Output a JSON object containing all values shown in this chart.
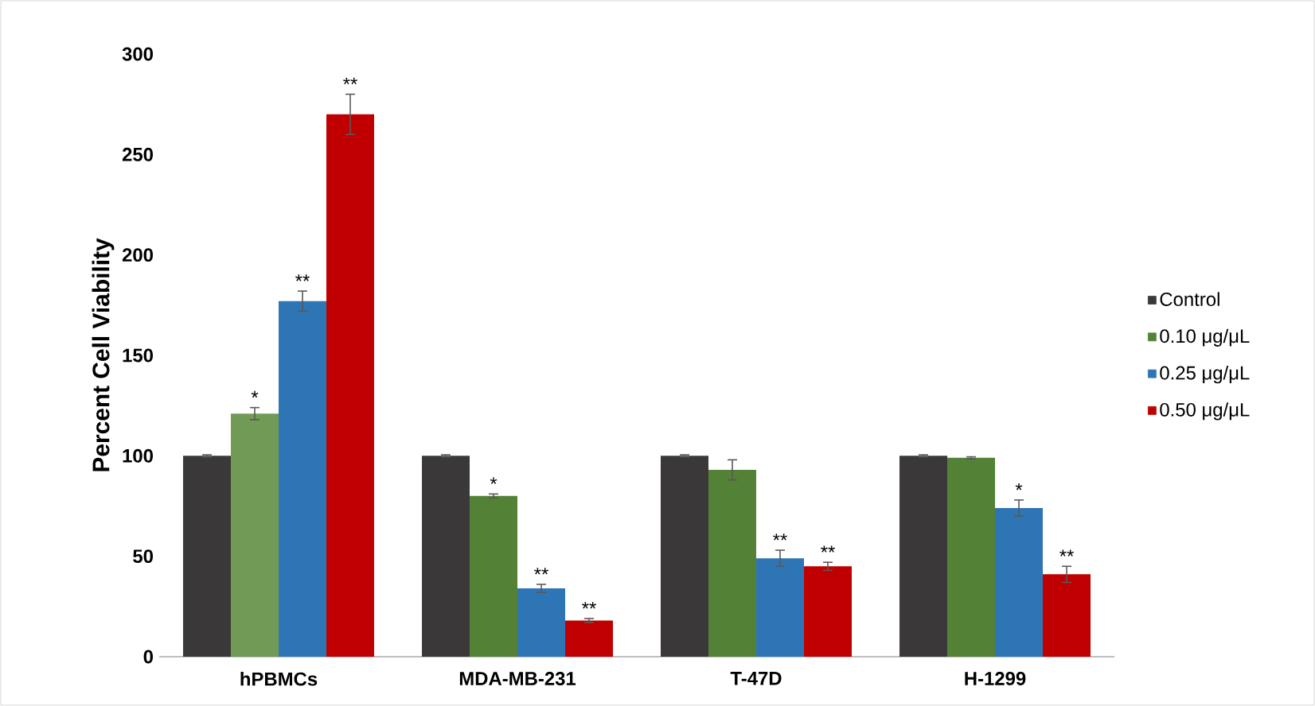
{
  "chart_data": {
    "type": "bar",
    "ylabel": "Percent Cell Viability",
    "categories": [
      "hPBMCs",
      "MDA-MB-231",
      "T-47D",
      "H-1299"
    ],
    "series": [
      {
        "name": "Control",
        "color": "#3a3838",
        "values": [
          100,
          100,
          100,
          100
        ],
        "errors": [
          0.5,
          0.5,
          0.5,
          0.5
        ]
      },
      {
        "name": "0.10 μg/μL",
        "color": "#538135",
        "colors": [
          "#719a56",
          "#538135",
          "#538135",
          "#538135"
        ],
        "values": [
          121,
          80,
          93,
          99
        ],
        "errors": [
          3,
          1,
          5,
          0.5
        ],
        "value_labels": [
          "*",
          "*",
          null,
          null
        ]
      },
      {
        "name": "0.25 μg/μL",
        "color": "#2e75b6",
        "values": [
          177,
          34,
          49,
          74
        ],
        "errors": [
          5,
          2,
          4,
          4
        ],
        "value_labels": [
          "**",
          "**",
          "**",
          "*"
        ]
      },
      {
        "name": "0.50 μg/μL",
        "color": "#c00000",
        "values": [
          270,
          18,
          45,
          41
        ],
        "errors": [
          10,
          1,
          2,
          4
        ],
        "value_labels": [
          "**",
          "**",
          "**",
          "**"
        ]
      }
    ],
    "ylim": [
      0,
      300
    ],
    "yticks": [
      0,
      50,
      100,
      150,
      200,
      250,
      300
    ],
    "legend": "right"
  }
}
